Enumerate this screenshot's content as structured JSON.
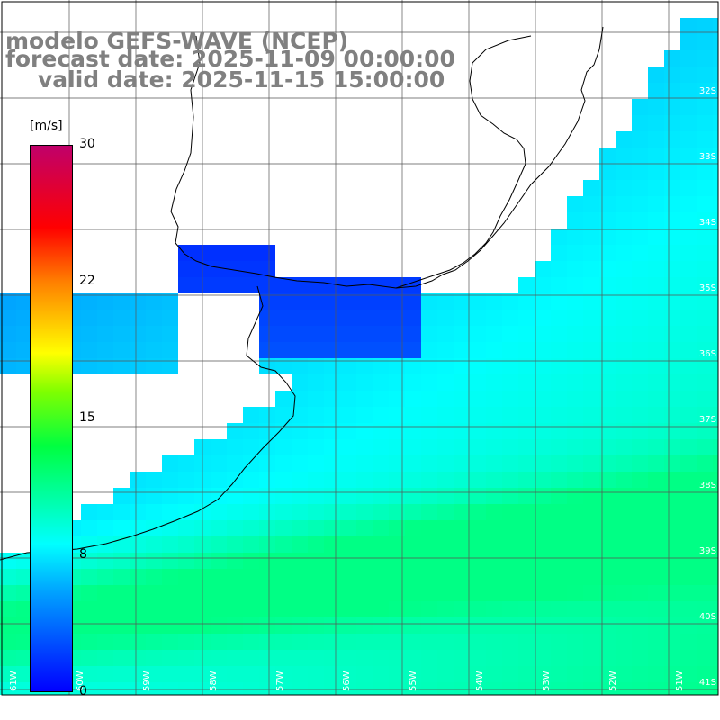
{
  "title": {
    "line1": "modelo GEFS-WAVE (NCEP)",
    "line2": "forecast date: 2025-11-09 00:00:00",
    "line3": "valid date: 2025-11-15 15:00:00"
  },
  "colorbar": {
    "unit": "[m/s]",
    "ticks": [
      "30",
      "22",
      "15",
      "8",
      "0"
    ],
    "min": 0,
    "max": 30,
    "colors": [
      "#0000ff",
      "#00a0ff",
      "#00ffff",
      "#00ff40",
      "#80ff00",
      "#ffff00",
      "#ff8000",
      "#ff0000",
      "#c0006a"
    ]
  },
  "lat_labels": [
    "32S",
    "33S",
    "34S",
    "35S",
    "36S",
    "37S",
    "38S",
    "39S",
    "40S",
    "41S"
  ],
  "lon_labels": [
    "61W",
    "60W",
    "59W",
    "58W",
    "57W",
    "56W",
    "55W",
    "54W",
    "53W",
    "52W",
    "51W"
  ],
  "colors": {
    "land": "#ffffff",
    "grid": "#555555",
    "coast": "#000000",
    "vector": "#ffffff",
    "title": "#808080"
  }
}
